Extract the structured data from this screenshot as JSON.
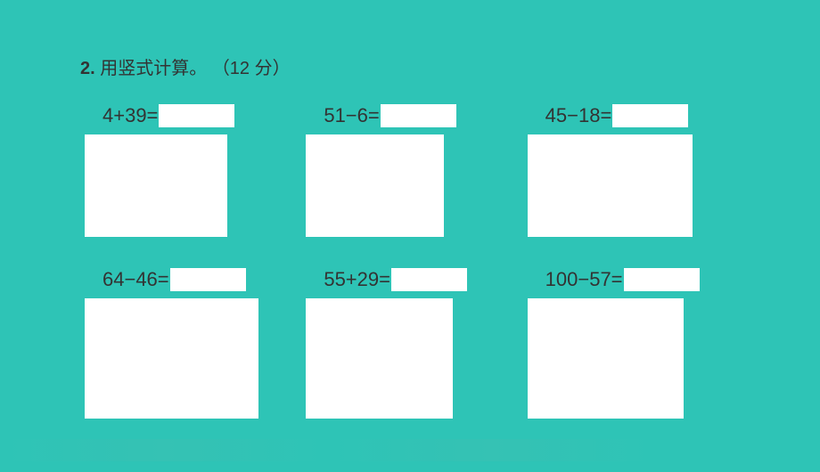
{
  "title": {
    "number": "2.",
    "text": "用竖式计算。",
    "points": "（12 分）"
  },
  "problems": [
    {
      "expression": "4+39="
    },
    {
      "expression": "51−6="
    },
    {
      "expression": "45−18="
    },
    {
      "expression": "64−46="
    },
    {
      "expression": "55+29="
    },
    {
      "expression": "100−57="
    }
  ],
  "styling": {
    "background_color": "#2ec4b6",
    "text_color": "#333333",
    "box_color": "#ffffff",
    "title_fontsize": 20,
    "equation_fontsize": 22,
    "font_family": "SimSun"
  }
}
